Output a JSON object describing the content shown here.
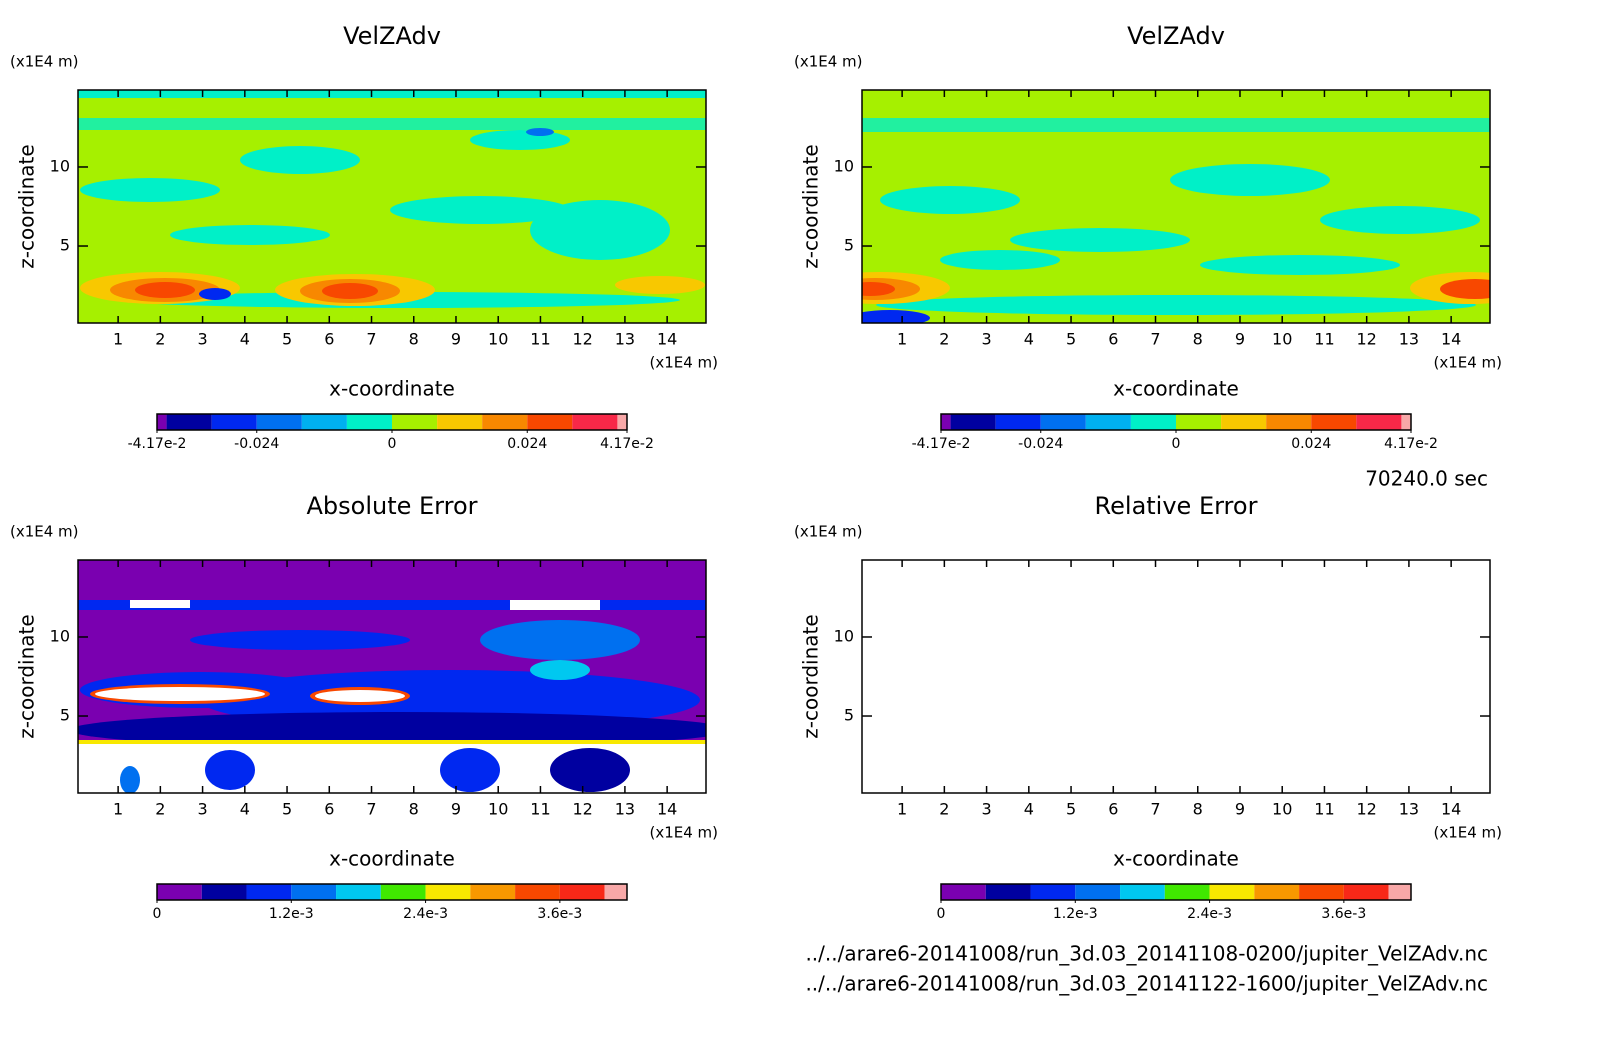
{
  "chart_data": [
    {
      "type": "contour",
      "title": "VelZAdv",
      "xlabel": "x-coordinate",
      "ylabel": "z-coordinate",
      "xunit": "(x1E4 m)",
      "yunit": "(x1E4 m)",
      "xlim": [
        0.05,
        14.92
      ],
      "ylim": [
        0.13,
        14.87
      ],
      "xticks": [
        1,
        2,
        3,
        4,
        5,
        6,
        7,
        8,
        9,
        10,
        11,
        12,
        13,
        14
      ],
      "yticks": [
        5,
        10
      ],
      "fill": "#a6f000",
      "colorbar": {
        "levels": [
          -0.0417,
          -0.04,
          -0.032,
          -0.024,
          -0.016,
          -0.008,
          0,
          0.008,
          0.016,
          0.024,
          0.032,
          0.04,
          0.0417
        ],
        "colors": [
          "#7a00b0",
          "#0000a0",
          "#0028f0",
          "#0070f0",
          "#00b0f0",
          "#00f0c8",
          "#a6f000",
          "#f8c800",
          "#f88800",
          "#f84800",
          "#f82848",
          "#f8a8a8"
        ],
        "ticks": [
          {
            "value": -0.0417,
            "label": "-4.17e-2"
          },
          -0.024,
          0,
          0.024,
          {
            "value": 0.0417,
            "label": "4.17e-2"
          }
        ]
      }
    },
    {
      "type": "contour",
      "title": "VelZAdv",
      "xlabel": "x-coordinate",
      "ylabel": "z-coordinate",
      "xunit": "(x1E4 m)",
      "yunit": "(x1E4 m)",
      "xlim": [
        0.05,
        14.92
      ],
      "ylim": [
        0.13,
        14.87
      ],
      "xticks": [
        1,
        2,
        3,
        4,
        5,
        6,
        7,
        8,
        9,
        10,
        11,
        12,
        13,
        14
      ],
      "yticks": [
        5,
        10
      ],
      "fill": "#a6f000",
      "colorbar": {
        "levels": [
          -0.0417,
          -0.04,
          -0.032,
          -0.024,
          -0.016,
          -0.008,
          0,
          0.008,
          0.016,
          0.024,
          0.032,
          0.04,
          0.0417
        ],
        "colors": [
          "#7a00b0",
          "#0000a0",
          "#0028f0",
          "#0070f0",
          "#00b0f0",
          "#00f0c8",
          "#a6f000",
          "#f8c800",
          "#f88800",
          "#f84800",
          "#f82848",
          "#f8a8a8"
        ],
        "ticks": [
          {
            "value": -0.0417,
            "label": "-4.17e-2"
          },
          -0.024,
          0,
          0.024,
          {
            "value": 0.0417,
            "label": "4.17e-2"
          }
        ]
      }
    },
    {
      "type": "contour",
      "title": "Absolute Error",
      "xlabel": "x-coordinate",
      "ylabel": "z-coordinate",
      "xunit": "(x1E4 m)",
      "yunit": "(x1E4 m)",
      "xlim": [
        0.05,
        14.92
      ],
      "ylim": [
        0.13,
        14.87
      ],
      "xticks": [
        1,
        2,
        3,
        4,
        5,
        6,
        7,
        8,
        9,
        10,
        11,
        12,
        13,
        14
      ],
      "yticks": [
        5,
        10
      ],
      "fill": "#7a00b0",
      "colorbar": {
        "levels": [
          0,
          0.0004,
          0.0008,
          0.0012,
          0.0016,
          0.002,
          0.0024,
          0.0028,
          0.0032,
          0.0036,
          0.004,
          0.0042
        ],
        "colors": [
          "#7a00b0",
          "#0000a0",
          "#0028f0",
          "#0070f0",
          "#00c8f0",
          "#40e800",
          "#f8e800",
          "#f89800",
          "#f84800",
          "#f82818",
          "#f8a8a8"
        ],
        "ticks": [
          0,
          {
            "value": 0.0012,
            "label": "1.2e-3"
          },
          {
            "value": 0.0024,
            "label": "2.4e-3"
          },
          {
            "value": 0.0036,
            "label": "3.6e-3"
          }
        ]
      }
    },
    {
      "type": "contour",
      "title": "Relative Error",
      "xlabel": "x-coordinate",
      "ylabel": "z-coordinate",
      "xunit": "(x1E4 m)",
      "yunit": "(x1E4 m)",
      "xlim": [
        0.05,
        14.92
      ],
      "ylim": [
        0.13,
        14.87
      ],
      "xticks": [
        1,
        2,
        3,
        4,
        5,
        6,
        7,
        8,
        9,
        10,
        11,
        12,
        13,
        14
      ],
      "yticks": [
        5,
        10
      ],
      "fill": "#ffffff",
      "colorbar": {
        "levels": [
          0,
          0.0004,
          0.0008,
          0.0012,
          0.0016,
          0.002,
          0.0024,
          0.0028,
          0.0032,
          0.0036,
          0.004,
          0.0042
        ],
        "colors": [
          "#7a00b0",
          "#0000a0",
          "#0028f0",
          "#0070f0",
          "#00c8f0",
          "#40e800",
          "#f8e800",
          "#f89800",
          "#f84800",
          "#f82818",
          "#f8a8a8"
        ],
        "ticks": [
          0,
          {
            "value": 0.0012,
            "label": "1.2e-3"
          },
          {
            "value": 0.0024,
            "label": "2.4e-3"
          },
          {
            "value": 0.0036,
            "label": "3.6e-3"
          }
        ]
      }
    }
  ],
  "time": "70240.0 sec",
  "files": [
    "../../arare6-20141008/run_3d.03_20141108-0200/jupiter_VelZAdv.nc",
    "../../arare6-20141008/run_3d.03_20141122-1600/jupiter_VelZAdv.nc"
  ]
}
